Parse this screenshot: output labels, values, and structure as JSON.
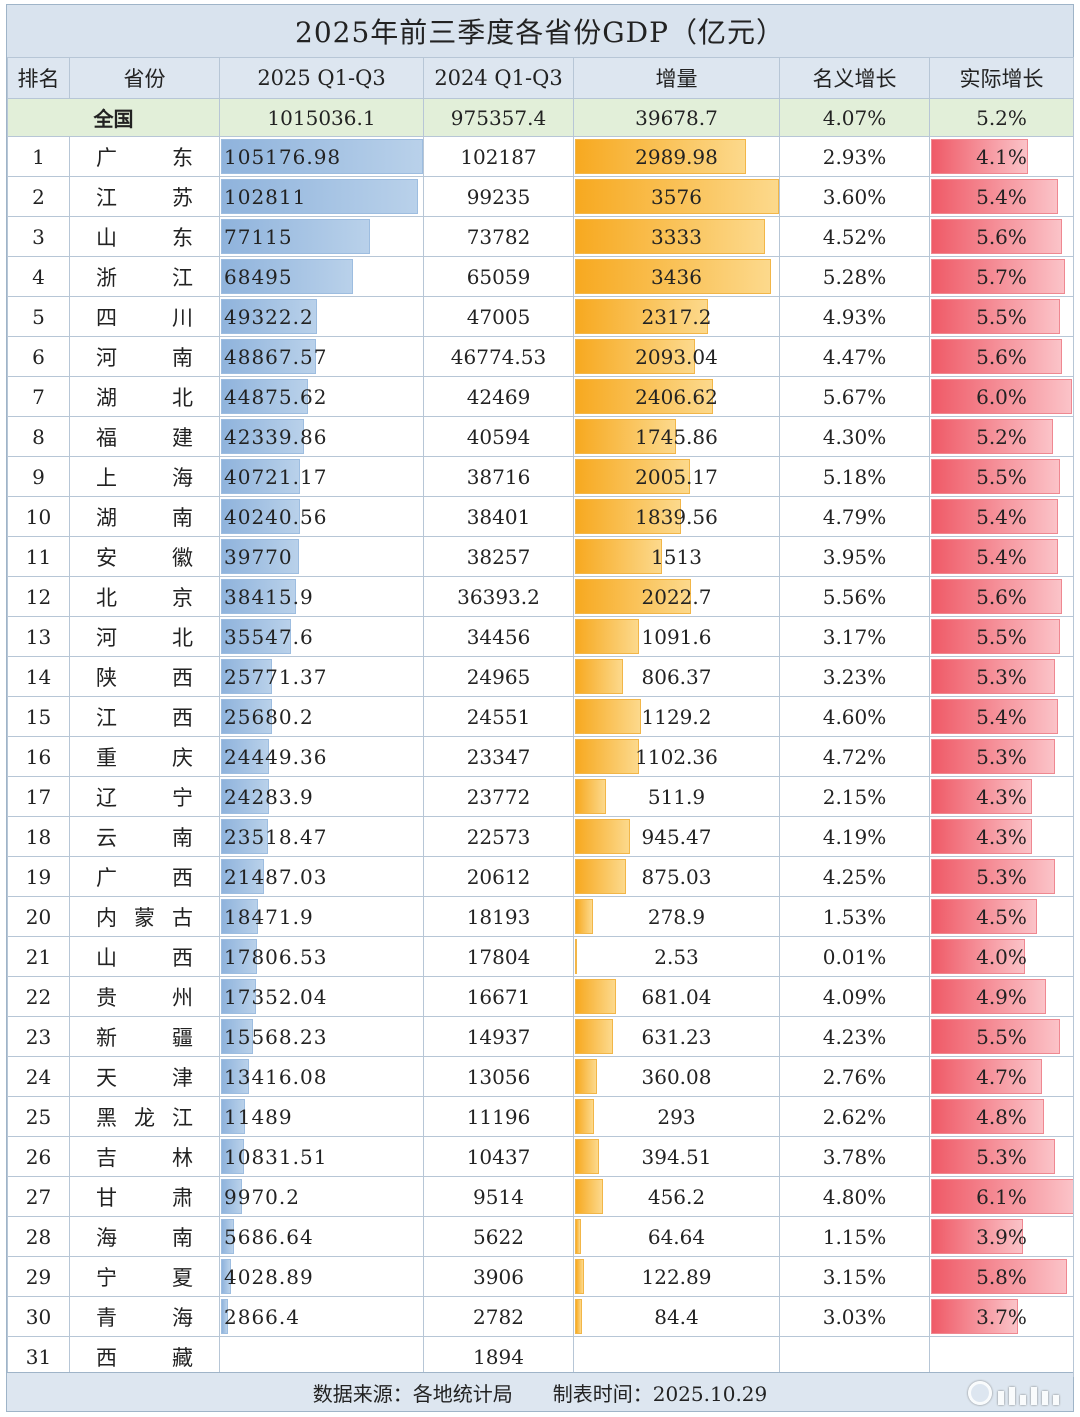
{
  "title": "2025年前三季度各省份GDP（亿元）",
  "headers": [
    "排名",
    "省份",
    "2025 Q1-Q3",
    "2024 Q1-Q3",
    "增量",
    "名义增长",
    "实际增长"
  ],
  "nation": {
    "label": "全国",
    "gdp_2025": "1015036.1",
    "gdp_2024": "975357.4",
    "increase": "39678.7",
    "nominal": "4.07%",
    "real": "5.2%"
  },
  "colors": {
    "blue_bar": "#8fb3dc",
    "orange_bar": "#f7a920",
    "red_bar": "#ef5a67",
    "nation_row": "#e2efd9",
    "header": "#dde6f0"
  },
  "rows": [
    {
      "rank": "1",
      "name": [
        "广",
        "东"
      ],
      "gdp_2025": "105176.98",
      "v2025": 105176.98,
      "gdp_2024": "102187",
      "increase": "2989.98",
      "vinc": 2989.98,
      "nominal": "2.93%",
      "real": "4.1%",
      "vreal": 4.1
    },
    {
      "rank": "2",
      "name": [
        "江",
        "苏"
      ],
      "gdp_2025": "102811",
      "v2025": 102811,
      "gdp_2024": "99235",
      "increase": "3576",
      "vinc": 3576,
      "nominal": "3.60%",
      "real": "5.4%",
      "vreal": 5.4
    },
    {
      "rank": "3",
      "name": [
        "山",
        "东"
      ],
      "gdp_2025": "77115",
      "v2025": 77115,
      "gdp_2024": "73782",
      "increase": "3333",
      "vinc": 3333,
      "nominal": "4.52%",
      "real": "5.6%",
      "vreal": 5.6
    },
    {
      "rank": "4",
      "name": [
        "浙",
        "江"
      ],
      "gdp_2025": "68495",
      "v2025": 68495,
      "gdp_2024": "65059",
      "increase": "3436",
      "vinc": 3436,
      "nominal": "5.28%",
      "real": "5.7%",
      "vreal": 5.7
    },
    {
      "rank": "5",
      "name": [
        "四",
        "川"
      ],
      "gdp_2025": "49322.2",
      "v2025": 49322.2,
      "gdp_2024": "47005",
      "increase": "2317.2",
      "vinc": 2317.2,
      "nominal": "4.93%",
      "real": "5.5%",
      "vreal": 5.5
    },
    {
      "rank": "6",
      "name": [
        "河",
        "南"
      ],
      "gdp_2025": "48867.57",
      "v2025": 48867.57,
      "gdp_2024": "46774.53",
      "increase": "2093.04",
      "vinc": 2093.04,
      "nominal": "4.47%",
      "real": "5.6%",
      "vreal": 5.6
    },
    {
      "rank": "7",
      "name": [
        "湖",
        "北"
      ],
      "gdp_2025": "44875.62",
      "v2025": 44875.62,
      "gdp_2024": "42469",
      "increase": "2406.62",
      "vinc": 2406.62,
      "nominal": "5.67%",
      "real": "6.0%",
      "vreal": 6.0
    },
    {
      "rank": "8",
      "name": [
        "福",
        "建"
      ],
      "gdp_2025": "42339.86",
      "v2025": 42339.86,
      "gdp_2024": "40594",
      "increase": "1745.86",
      "vinc": 1745.86,
      "nominal": "4.30%",
      "real": "5.2%",
      "vreal": 5.2
    },
    {
      "rank": "9",
      "name": [
        "上",
        "海"
      ],
      "gdp_2025": "40721.17",
      "v2025": 40721.17,
      "gdp_2024": "38716",
      "increase": "2005.17",
      "vinc": 2005.17,
      "nominal": "5.18%",
      "real": "5.5%",
      "vreal": 5.5
    },
    {
      "rank": "10",
      "name": [
        "湖",
        "南"
      ],
      "gdp_2025": "40240.56",
      "v2025": 40240.56,
      "gdp_2024": "38401",
      "increase": "1839.56",
      "vinc": 1839.56,
      "nominal": "4.79%",
      "real": "5.4%",
      "vreal": 5.4
    },
    {
      "rank": "11",
      "name": [
        "安",
        "徽"
      ],
      "gdp_2025": "39770",
      "v2025": 39770,
      "gdp_2024": "38257",
      "increase": "1513",
      "vinc": 1513,
      "nominal": "3.95%",
      "real": "5.4%",
      "vreal": 5.4
    },
    {
      "rank": "12",
      "name": [
        "北",
        "京"
      ],
      "gdp_2025": "38415.9",
      "v2025": 38415.9,
      "gdp_2024": "36393.2",
      "increase": "2022.7",
      "vinc": 2022.7,
      "nominal": "5.56%",
      "real": "5.6%",
      "vreal": 5.6
    },
    {
      "rank": "13",
      "name": [
        "河",
        "北"
      ],
      "gdp_2025": "35547.6",
      "v2025": 35547.6,
      "gdp_2024": "34456",
      "increase": "1091.6",
      "vinc": 1091.6,
      "nominal": "3.17%",
      "real": "5.5%",
      "vreal": 5.5
    },
    {
      "rank": "14",
      "name": [
        "陕",
        "西"
      ],
      "gdp_2025": "25771.37",
      "v2025": 25771.37,
      "gdp_2024": "24965",
      "increase": "806.37",
      "vinc": 806.37,
      "nominal": "3.23%",
      "real": "5.3%",
      "vreal": 5.3
    },
    {
      "rank": "15",
      "name": [
        "江",
        "西"
      ],
      "gdp_2025": "25680.2",
      "v2025": 25680.2,
      "gdp_2024": "24551",
      "increase": "1129.2",
      "vinc": 1129.2,
      "nominal": "4.60%",
      "real": "5.4%",
      "vreal": 5.4
    },
    {
      "rank": "16",
      "name": [
        "重",
        "庆"
      ],
      "gdp_2025": "24449.36",
      "v2025": 24449.36,
      "gdp_2024": "23347",
      "increase": "1102.36",
      "vinc": 1102.36,
      "nominal": "4.72%",
      "real": "5.3%",
      "vreal": 5.3
    },
    {
      "rank": "17",
      "name": [
        "辽",
        "宁"
      ],
      "gdp_2025": "24283.9",
      "v2025": 24283.9,
      "gdp_2024": "23772",
      "increase": "511.9",
      "vinc": 511.9,
      "nominal": "2.15%",
      "real": "4.3%",
      "vreal": 4.3
    },
    {
      "rank": "18",
      "name": [
        "云",
        "南"
      ],
      "gdp_2025": "23518.47",
      "v2025": 23518.47,
      "gdp_2024": "22573",
      "increase": "945.47",
      "vinc": 945.47,
      "nominal": "4.19%",
      "real": "4.3%",
      "vreal": 4.3
    },
    {
      "rank": "19",
      "name": [
        "广",
        "西"
      ],
      "gdp_2025": "21487.03",
      "v2025": 21487.03,
      "gdp_2024": "20612",
      "increase": "875.03",
      "vinc": 875.03,
      "nominal": "4.25%",
      "real": "5.3%",
      "vreal": 5.3
    },
    {
      "rank": "20",
      "name": [
        "内",
        "蒙",
        "古"
      ],
      "gdp_2025": "18471.9",
      "v2025": 18471.9,
      "gdp_2024": "18193",
      "increase": "278.9",
      "vinc": 278.9,
      "nominal": "1.53%",
      "real": "4.5%",
      "vreal": 4.5
    },
    {
      "rank": "21",
      "name": [
        "山",
        "西"
      ],
      "gdp_2025": "17806.53",
      "v2025": 17806.53,
      "gdp_2024": "17804",
      "increase": "2.53",
      "vinc": 2.53,
      "nominal": "0.01%",
      "real": "4.0%",
      "vreal": 4.0
    },
    {
      "rank": "22",
      "name": [
        "贵",
        "州"
      ],
      "gdp_2025": "17352.04",
      "v2025": 17352.04,
      "gdp_2024": "16671",
      "increase": "681.04",
      "vinc": 681.04,
      "nominal": "4.09%",
      "real": "4.9%",
      "vreal": 4.9
    },
    {
      "rank": "23",
      "name": [
        "新",
        "疆"
      ],
      "gdp_2025": "15568.23",
      "v2025": 15568.23,
      "gdp_2024": "14937",
      "increase": "631.23",
      "vinc": 631.23,
      "nominal": "4.23%",
      "real": "5.5%",
      "vreal": 5.5
    },
    {
      "rank": "24",
      "name": [
        "天",
        "津"
      ],
      "gdp_2025": "13416.08",
      "v2025": 13416.08,
      "gdp_2024": "13056",
      "increase": "360.08",
      "vinc": 360.08,
      "nominal": "2.76%",
      "real": "4.7%",
      "vreal": 4.7
    },
    {
      "rank": "25",
      "name": [
        "黑",
        "龙",
        "江"
      ],
      "gdp_2025": "11489",
      "v2025": 11489,
      "gdp_2024": "11196",
      "increase": "293",
      "vinc": 293,
      "nominal": "2.62%",
      "real": "4.8%",
      "vreal": 4.8
    },
    {
      "rank": "26",
      "name": [
        "吉",
        "林"
      ],
      "gdp_2025": "10831.51",
      "v2025": 10831.51,
      "gdp_2024": "10437",
      "increase": "394.51",
      "vinc": 394.51,
      "nominal": "3.78%",
      "real": "5.3%",
      "vreal": 5.3
    },
    {
      "rank": "27",
      "name": [
        "甘",
        "肃"
      ],
      "gdp_2025": "9970.2",
      "v2025": 9970.2,
      "gdp_2024": "9514",
      "increase": "456.2",
      "vinc": 456.2,
      "nominal": "4.80%",
      "real": "6.1%",
      "vreal": 6.1
    },
    {
      "rank": "28",
      "name": [
        "海",
        "南"
      ],
      "gdp_2025": "5686.64",
      "v2025": 5686.64,
      "gdp_2024": "5622",
      "increase": "64.64",
      "vinc": 64.64,
      "nominal": "1.15%",
      "real": "3.9%",
      "vreal": 3.9
    },
    {
      "rank": "29",
      "name": [
        "宁",
        "夏"
      ],
      "gdp_2025": "4028.89",
      "v2025": 4028.89,
      "gdp_2024": "3906",
      "increase": "122.89",
      "vinc": 122.89,
      "nominal": "3.15%",
      "real": "5.8%",
      "vreal": 5.8
    },
    {
      "rank": "30",
      "name": [
        "青",
        "海"
      ],
      "gdp_2025": "2866.4",
      "v2025": 2866.4,
      "gdp_2024": "2782",
      "increase": "84.4",
      "vinc": 84.4,
      "nominal": "3.03%",
      "real": "3.7%",
      "vreal": 3.7
    },
    {
      "rank": "31",
      "name": [
        "西",
        "藏"
      ],
      "gdp_2025": "",
      "v2025": 0,
      "gdp_2024": "1894",
      "increase": "",
      "vinc": 0,
      "nominal": "",
      "real": "",
      "vreal": 0
    }
  ],
  "footer": {
    "source": "数据来源：各地统计局",
    "date": "制表时间：2025.10.29"
  },
  "watermark": {
    "icon": "watermark-logo-icon"
  }
}
